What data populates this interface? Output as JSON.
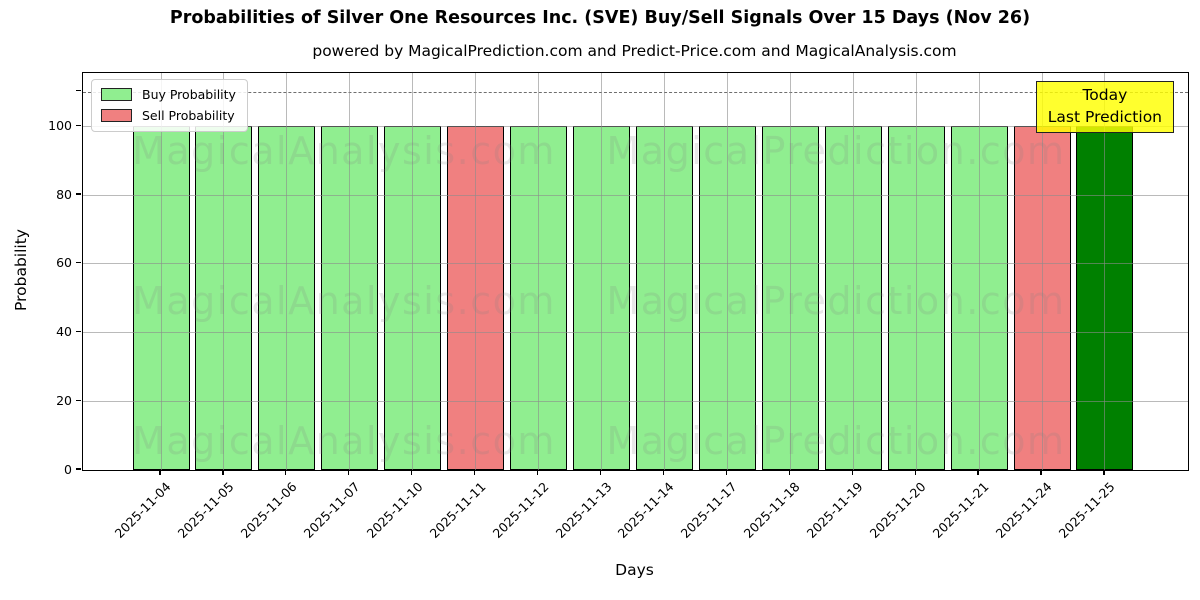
{
  "header": {
    "title": "Probabilities of Silver One Resources Inc. (SVE) Buy/Sell Signals Over 15 Days (Nov 26)",
    "subtitle": "powered by MagicalPrediction.com and Predict-Price.com and MagicalAnalysis.com"
  },
  "legend": {
    "items": [
      {
        "label": "Buy Probability",
        "color": "#90ee90"
      },
      {
        "label": "Sell Probability",
        "color": "#f08080"
      }
    ]
  },
  "annotation_box": {
    "line1": "Today",
    "line2": "Last Prediction",
    "bg_color": "rgba(255,255,0,0.82)"
  },
  "watermarks": {
    "texts": [
      "MagicalAnalysis.com",
      "MagicalPrediction.com"
    ]
  },
  "chart_data": {
    "type": "bar",
    "title": "Probabilities of Silver One Resources Inc. (SVE) Buy/Sell Signals Over 15 Days (Nov 26)",
    "xlabel": "Days",
    "ylabel": "Probability",
    "categories": [
      "2025-11-04",
      "2025-11-05",
      "2025-11-06",
      "2025-11-07",
      "2025-11-10",
      "2025-11-11",
      "2025-11-12",
      "2025-11-13",
      "2025-11-14",
      "2025-11-17",
      "2025-11-18",
      "2025-11-19",
      "2025-11-20",
      "2025-11-21",
      "2025-11-24",
      "2025-11-25"
    ],
    "series": [
      {
        "name": "Buy Probability",
        "color": "#90ee90",
        "values": [
          100,
          100,
          100,
          100,
          100,
          0,
          100,
          100,
          100,
          100,
          100,
          100,
          100,
          100,
          0,
          100
        ]
      },
      {
        "name": "Sell Probability",
        "color": "#f08080",
        "values": [
          0,
          0,
          0,
          0,
          0,
          100,
          0,
          0,
          0,
          0,
          0,
          0,
          0,
          0,
          100,
          0
        ]
      }
    ],
    "bar_signals": [
      "buy",
      "buy",
      "buy",
      "buy",
      "buy",
      "sell",
      "buy",
      "buy",
      "buy",
      "buy",
      "buy",
      "buy",
      "buy",
      "buy",
      "sell",
      "last"
    ],
    "signal_colors": {
      "buy": "#90ee90",
      "sell": "#f08080",
      "last": "#008000"
    },
    "bar_edge_color": "#000000",
    "ylim": [
      0,
      115.5
    ],
    "yticks": [
      0,
      20,
      40,
      60,
      80,
      100
    ],
    "threshold_line": {
      "value": 110,
      "style": "dashed",
      "color": "#6e6e6e"
    },
    "grid": true,
    "legend_position": "upper left"
  }
}
